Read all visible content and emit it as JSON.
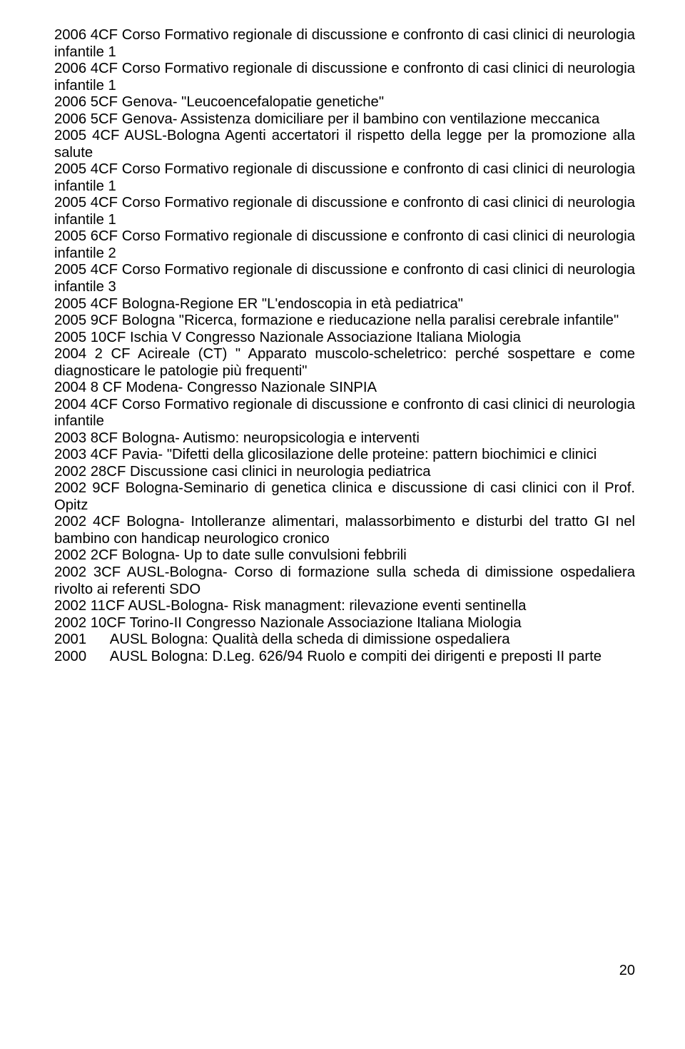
{
  "page_number": "20",
  "lines": [
    "2006  4CF Corso Formativo regionale di discussione e confronto di casi clinici di neurologia infantile 1",
    "2006  4CF  Corso Formativo regionale di discussione e confronto di casi clinici di neurologia infantile 1",
    "2006 5CF Genova- \"Leucoencefalopatie genetiche\"",
    "2006 5CF Genova- Assistenza domiciliare per il bambino con ventilazione meccanica",
    "2005 4CF AUSL-Bologna Agenti accertatori il rispetto della legge per la promozione alla salute",
    "2005 4CF Corso Formativo regionale di discussione e confronto di casi clinici di neurologia infantile 1",
    "2005 4CF Corso Formativo regionale di discussione e confronto di casi clinici di neurologia infantile 1",
    "2005 6CF Corso Formativo regionale di discussione e confronto di casi clinici di neurologia infantile 2",
    "2005 4CF Corso Formativo regionale di discussione e confronto di casi clinici di neurologia infantile 3",
    "2005 4CF Bologna-Regione ER \"L'endoscopia in età pediatrica\"",
    "2005 9CF Bologna \"Ricerca, formazione e rieducazione nella paralisi cerebrale infantile\"",
    "2005 10CF Ischia V Congresso Nazionale Associazione Italiana Miologia",
    "2004 2 CF Acireale (CT) \" Apparato muscolo-scheletrico: perché sospettare e come diagnosticare le patologie più frequenti\"",
    "2004 8 CF Modena- Congresso Nazionale SINPIA",
    "2004 4CF Corso Formativo regionale di discussione e confronto di casi clinici di neurologia infantile",
    "2003  8CF Bologna- Autismo: neuropsicologia e interventi",
    "2003 4CF Pavia- \"Difetti della glicosilazione delle proteine: pattern biochimici e clinici",
    "2002 28CF Discussione casi clinici in neurologia pediatrica",
    "2002  9CF  Bologna-Seminario di genetica clinica e discussione di casi clinici con il Prof. Opitz",
    "2002  4CF Bologna- Intolleranze alimentari, malassorbimento e disturbi del tratto GI nel bambino con handicap neurologico cronico",
    "2002 2CF Bologna- Up to date sulle convulsioni febbrili",
    "2002 3CF AUSL-Bologna- Corso di formazione sulla scheda di dimissione ospedaliera rivolto ai referenti SDO",
    "2002 11CF AUSL-Bologna- Risk managment: rilevazione eventi sentinella",
    "2002 10CF Torino-II Congresso Nazionale Associazione Italiana Miologia",
    "2001      AUSL Bologna: Qualità della scheda di dimissione ospedaliera",
    "2000      AUSL Bologna: D.Leg. 626/94 Ruolo e compiti dei dirigenti e preposti II parte"
  ]
}
